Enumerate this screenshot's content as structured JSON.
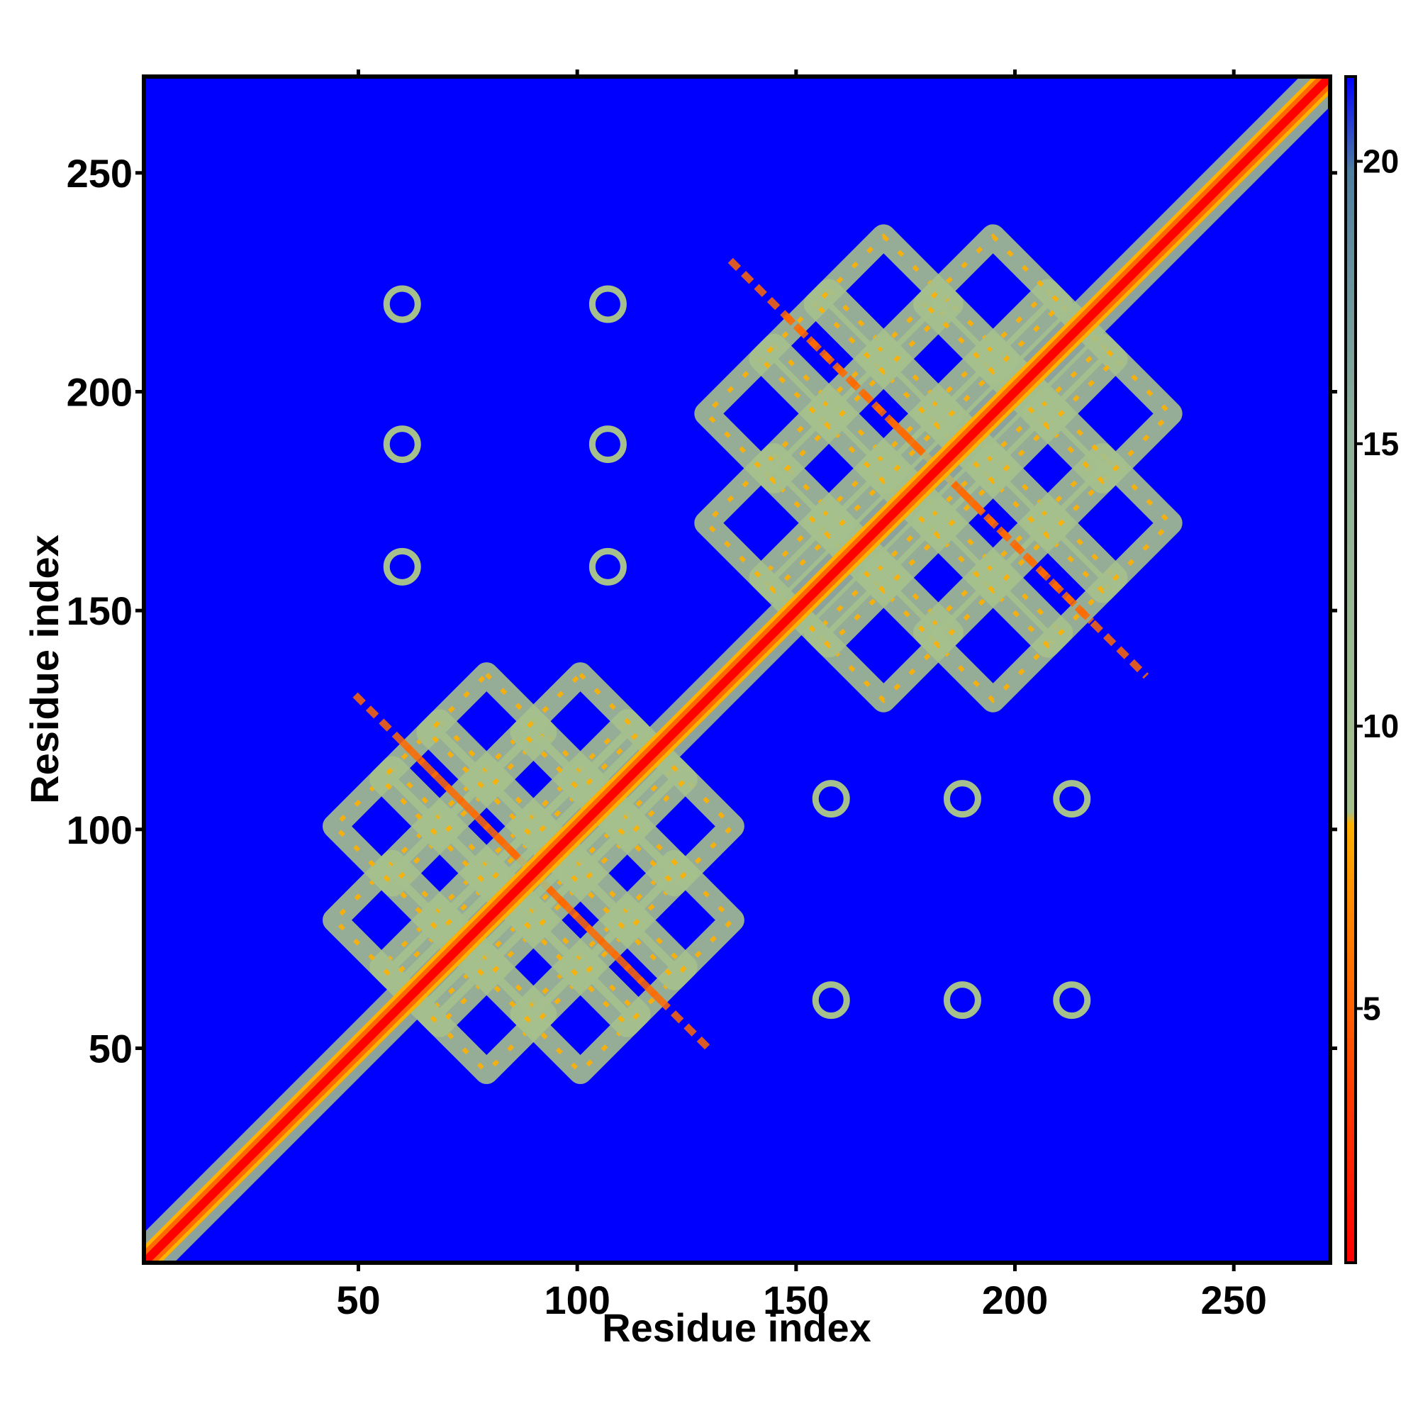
{
  "chart_data": {
    "type": "heatmap",
    "title": "",
    "xlabel": "Residue index",
    "ylabel": "Residue index",
    "xlim": [
      1,
      272
    ],
    "ylim": [
      1,
      272
    ],
    "xticks": [
      50,
      100,
      150,
      200,
      250
    ],
    "yticks": [
      50,
      100,
      150,
      200,
      250
    ],
    "n_residues": 272,
    "colorbar": {
      "ticks": [
        5,
        10,
        15,
        20
      ],
      "range": [
        0.5,
        21.5
      ],
      "colors": {
        "low": "#ff0000",
        "mid_low": "#ff6a00",
        "mid": "#ffb000",
        "mid_high": "#a5c08c",
        "high": "#4f7fa0",
        "background": "#0000ff"
      }
    },
    "contact_blocks": [
      {
        "name": "diagonal",
        "from": 1,
        "to": 272
      },
      {
        "name": "domain-1",
        "x": [
          45,
          135
        ],
        "y": [
          45,
          135
        ]
      },
      {
        "name": "domain-2",
        "x": [
          130,
          235
        ],
        "y": [
          130,
          235
        ]
      },
      {
        "name": "off-diagonal-spots",
        "points": [
          [
            60,
            220
          ],
          [
            107,
            220
          ],
          [
            60,
            188
          ],
          [
            107,
            188
          ],
          [
            60,
            160
          ],
          [
            107,
            160
          ],
          [
            158,
            107
          ],
          [
            188,
            107
          ],
          [
            213,
            107
          ],
          [
            158,
            61
          ],
          [
            188,
            61
          ],
          [
            213,
            61
          ]
        ]
      }
    ]
  }
}
